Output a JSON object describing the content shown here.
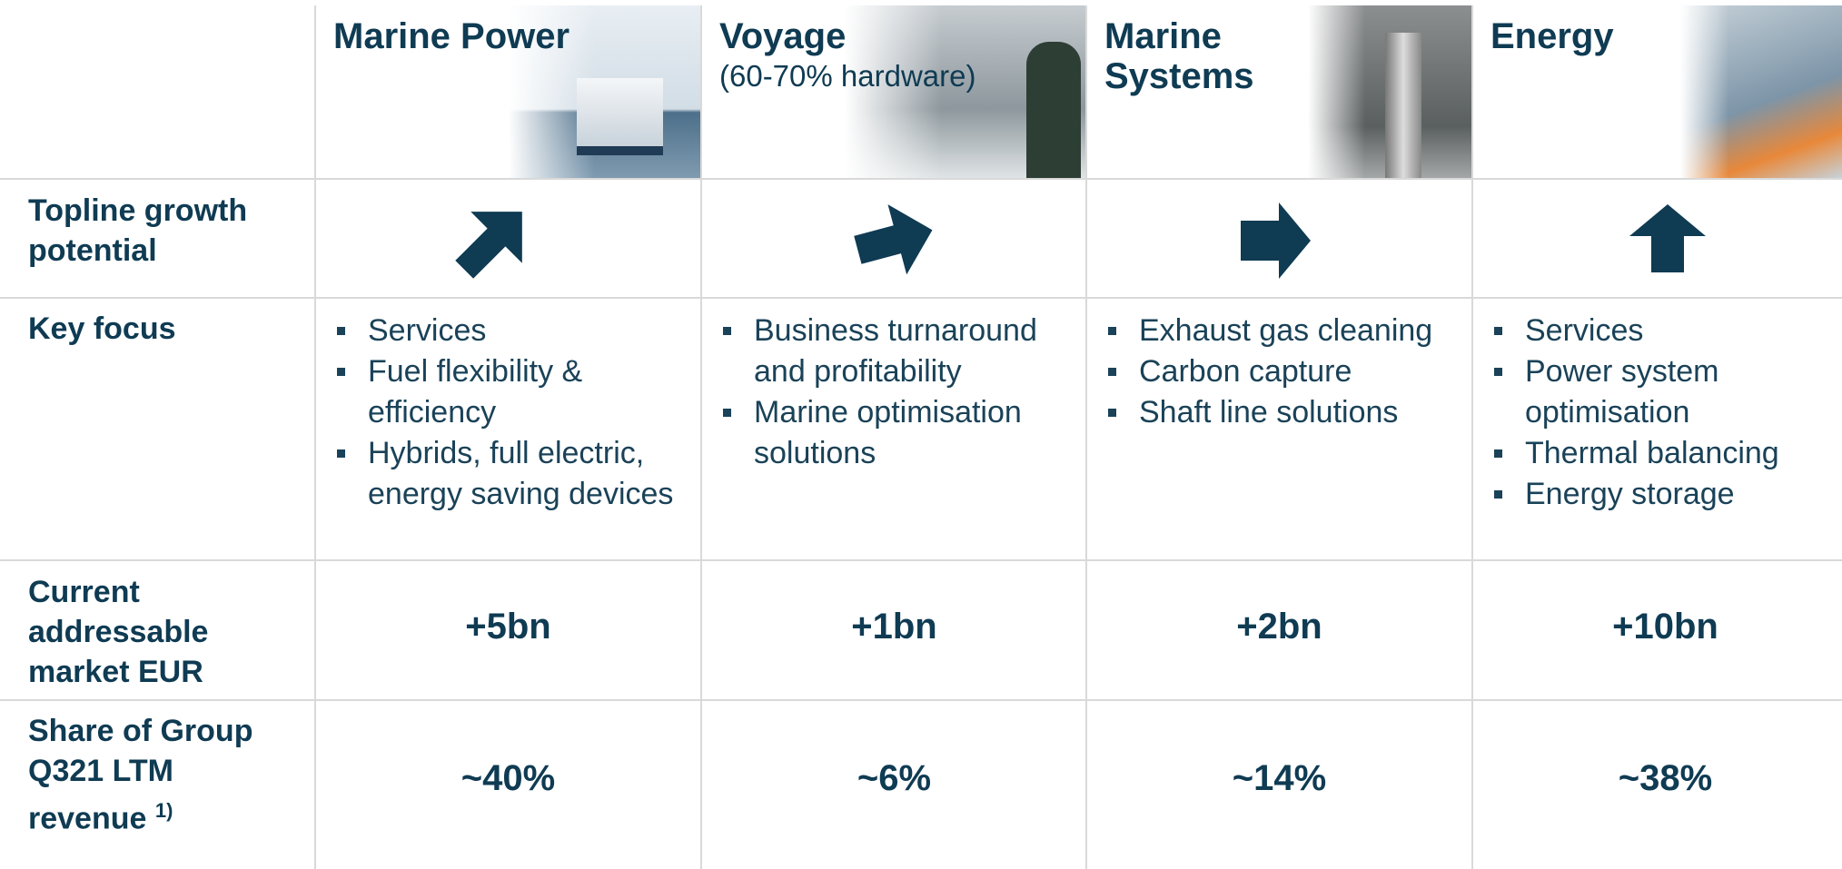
{
  "columns": [
    {
      "title": "Marine Power",
      "key_focus": [
        "Services",
        "Fuel flexibility & efficiency",
        "Hybrids, full electric, energy saving devices"
      ],
      "market": "+5bn",
      "share": "~40%"
    },
    {
      "title": "Voyage",
      "subtitle": "(60-70% hardware)",
      "key_focus": [
        "Business turnaround and profitability",
        "Marine optimisation solutions"
      ],
      "market": "+1bn",
      "share": "~6%"
    },
    {
      "title": "Marine Systems",
      "key_focus": [
        "Exhaust gas cleaning",
        "Carbon capture",
        "Shaft line solutions"
      ],
      "market": "+2bn",
      "share": "~14%"
    },
    {
      "title": "Energy",
      "key_focus": [
        "Services",
        "Power system optimisation",
        "Thermal balancing",
        "Energy storage"
      ],
      "market": "+10bn",
      "share": "~38%"
    }
  ],
  "row_labels": {
    "growth": "Topline growth potential",
    "key_focus": "Key focus",
    "market": "Current addressable market EUR",
    "share": "Share of Group Q321 LTM revenue",
    "share_note": "1)"
  }
}
